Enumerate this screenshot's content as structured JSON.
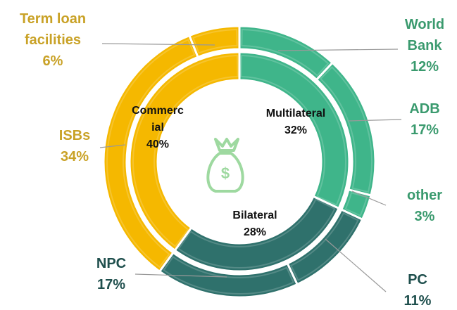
{
  "chart_data": {
    "type": "nested-donut",
    "inner": {
      "categories": [
        "Multilateral",
        "Bilateral",
        "Commercial"
      ],
      "values": [
        32,
        28,
        40
      ],
      "value_labels": [
        "32%",
        "28%",
        "40%"
      ],
      "colors": [
        "#3fb58a",
        "#2f716c",
        "#f5b800"
      ]
    },
    "outer": {
      "categories": [
        "World Bank",
        "ADB",
        "other",
        "PC",
        "NPC",
        "ISBs",
        "Term loan facilities"
      ],
      "values": [
        12,
        17,
        3,
        11,
        17,
        34,
        6
      ],
      "value_labels": [
        "12%",
        "17%",
        "3%",
        "11%",
        "17%",
        "34%",
        "6%"
      ],
      "colors": [
        "#3fb58a",
        "#3fb58a",
        "#3fb58a",
        "#2f716c",
        "#2f716c",
        "#f5b800",
        "#f5b800"
      ]
    }
  }
}
